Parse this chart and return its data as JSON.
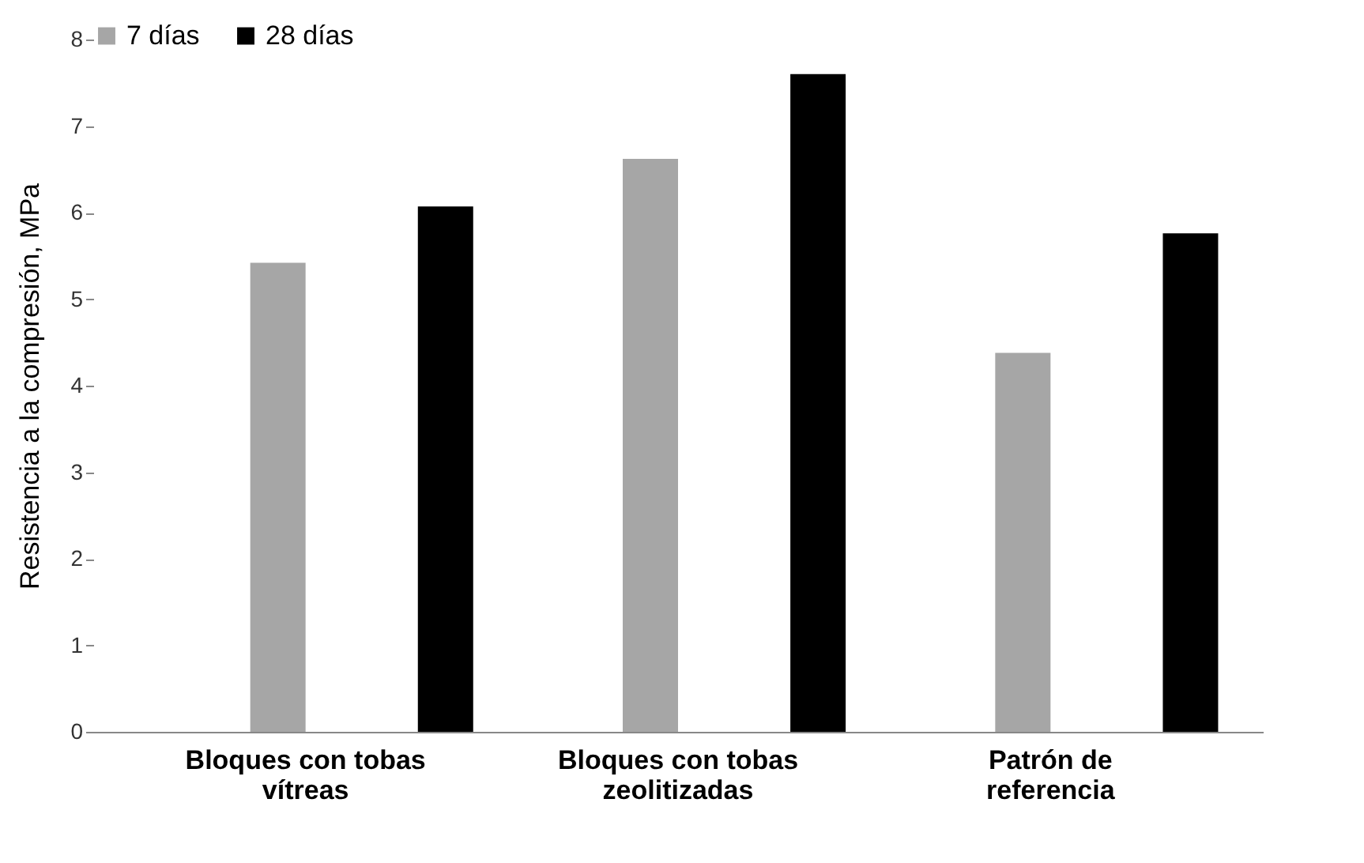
{
  "chart_data": {
    "type": "bar",
    "ylabel": "Resistencia a la compresión, MPa",
    "categories": [
      "Bloques con tobas vítreas",
      "Bloques con tobas zeolitizadas",
      "Patrón de referencia"
    ],
    "series": [
      {
        "name": "7 días",
        "color": "#a6a6a6",
        "values": [
          5.42,
          6.62,
          4.38
        ]
      },
      {
        "name": "28 días",
        "color": "#000000",
        "values": [
          6.07,
          7.6,
          5.76
        ]
      }
    ],
    "ylim": [
      0,
      8
    ],
    "yticks": [
      0,
      1,
      2,
      3,
      4,
      5,
      6,
      7,
      8
    ],
    "grid": false,
    "legend": "top"
  }
}
